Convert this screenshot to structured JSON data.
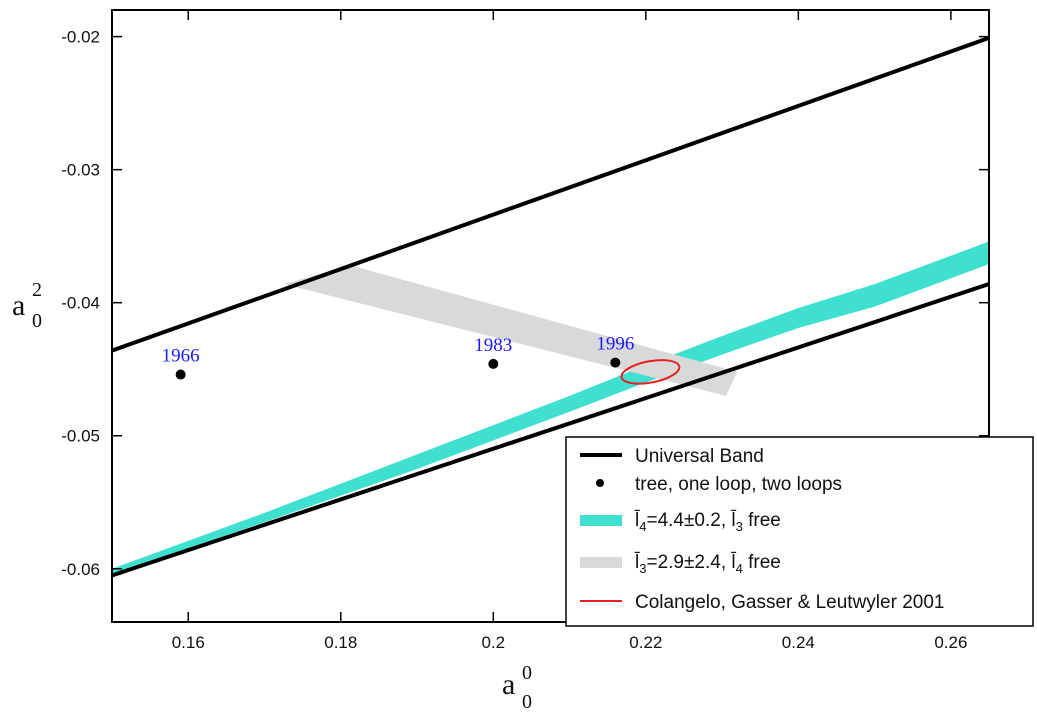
{
  "chart_data": {
    "type": "line",
    "xlabel": "a",
    "xlabel_superscript": "0",
    "xlabel_subscript": "0",
    "ylabel": "a",
    "ylabel_superscript": "2",
    "ylabel_subscript": "0",
    "xlim": [
      0.15,
      0.265
    ],
    "ylim": [
      -0.064,
      -0.018
    ],
    "x_ticks": [
      0.16,
      0.18,
      0.2,
      0.22,
      0.24,
      0.26
    ],
    "x_tick_labels": [
      "0.16",
      "0.18",
      "0.2",
      "0.22",
      "0.24",
      "0.26"
    ],
    "y_ticks": [
      -0.06,
      -0.05,
      -0.04,
      -0.03,
      -0.02
    ],
    "y_tick_labels": [
      "-0.06",
      "-0.05",
      "-0.04",
      "-0.03",
      "-0.02"
    ],
    "grid": false,
    "legend_position": "bottom-right",
    "series": [
      {
        "name": "Universal Band",
        "kind": "line",
        "color": "#000000",
        "lines": [
          {
            "x": [
              0.15,
              0.265
            ],
            "y": [
              -0.0436,
              -0.0201
            ]
          },
          {
            "x": [
              0.15,
              0.265
            ],
            "y": [
              -0.0605,
              -0.0386
            ]
          }
        ]
      },
      {
        "name": "tree, one loop, two loops",
        "kind": "scatter",
        "color": "#000000",
        "points": [
          {
            "x": 0.159,
            "y": -0.0454,
            "label": "1966"
          },
          {
            "x": 0.2,
            "y": -0.0446,
            "label": "1983"
          },
          {
            "x": 0.216,
            "y": -0.0445,
            "label": "1996"
          }
        ],
        "label_color": "#1a1aff"
      },
      {
        "name": "l̄4=4.4±0.2, l̄3 free",
        "name_parts": [
          "l̄",
          "4",
          "=4.4±0.2, l̄",
          "3",
          " free"
        ],
        "kind": "band",
        "color": "#40e0d0",
        "x": [
          0.15,
          0.17,
          0.19,
          0.21,
          0.22,
          0.23,
          0.24,
          0.25,
          0.265
        ],
        "y_upper": [
          -0.06,
          -0.0558,
          -0.0514,
          -0.047,
          -0.0447,
          -0.0425,
          -0.0404,
          -0.0386,
          -0.0354
        ],
        "y_lower": [
          -0.0604,
          -0.0565,
          -0.0525,
          -0.0482,
          -0.046,
          -0.0439,
          -0.0419,
          -0.0403,
          -0.0371
        ]
      },
      {
        "name": "l̄3=2.9±2.4, l̄4 free",
        "name_parts": [
          "l̄",
          "3",
          "=2.9±2.4, l̄",
          "4",
          " free"
        ],
        "kind": "band",
        "color": "#d9d9d9",
        "x": [
          0.1725,
          0.232
        ],
        "y_upper": [
          -0.0386,
          -0.0452
        ],
        "y_lower": [
          -0.0389,
          -0.047
        ],
        "left_corners": [
          [
            0.1725,
            -0.0386
          ],
          [
            0.1813,
            -0.0372
          ]
        ],
        "right_corners": [
          [
            0.232,
            -0.0452
          ],
          [
            0.2305,
            -0.047
          ]
        ]
      },
      {
        "name": "Colangelo, Gasser & Leutwyler 2001",
        "kind": "ellipse",
        "color": "#e62020",
        "center": {
          "x": 0.2206,
          "y": -0.0452
        },
        "semi_axes": {
          "a": 0.00385,
          "b": 0.0008
        },
        "angle_deg": 10.5
      }
    ]
  }
}
